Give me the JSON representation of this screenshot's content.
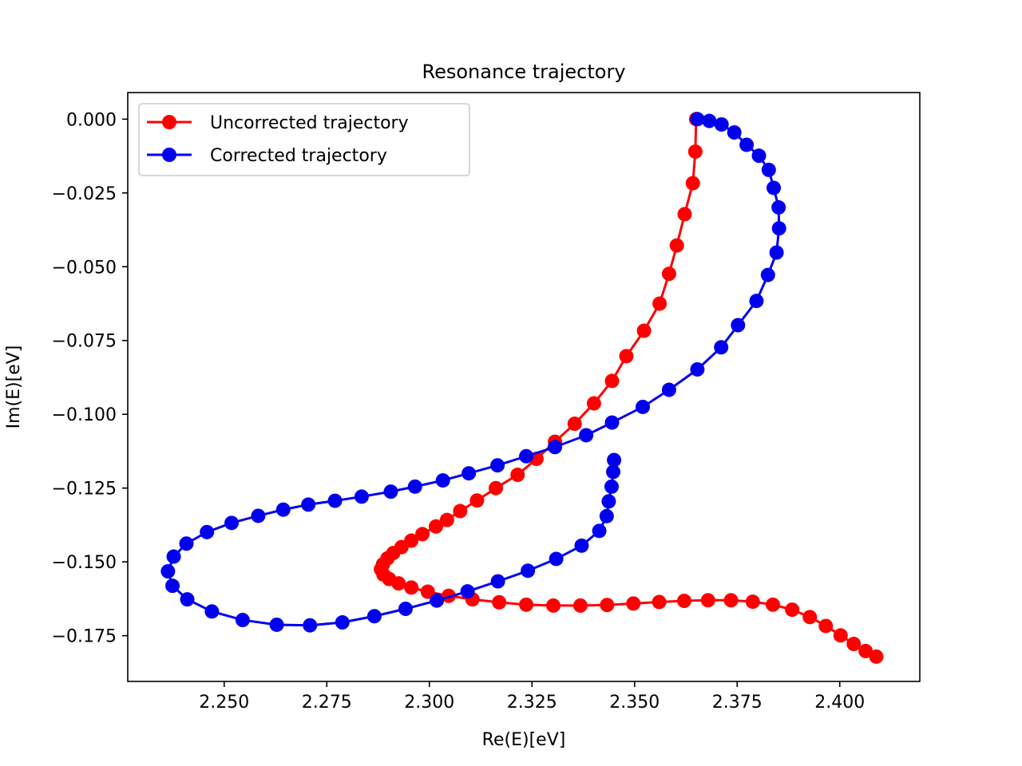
{
  "chart_data": {
    "type": "line",
    "title": "Resonance trajectory",
    "xlabel": "Re(E)[eV]",
    "ylabel": "Im(E)[eV]",
    "xlim": [
      2.2265,
      2.4195
    ],
    "ylim": [
      -0.1905,
      0.009
    ],
    "xticks": [
      2.25,
      2.275,
      2.3,
      2.325,
      2.35,
      2.375,
      2.4
    ],
    "xtick_labels": [
      "2.250",
      "2.275",
      "2.300",
      "2.325",
      "2.350",
      "2.375",
      "2.400"
    ],
    "yticks": [
      0.0,
      -0.025,
      -0.05,
      -0.075,
      -0.1,
      -0.125,
      -0.15,
      -0.175
    ],
    "ytick_labels": [
      "0.000",
      "−0.025",
      "−0.050",
      "−0.075",
      "−0.100",
      "−0.125",
      "−0.150",
      "−0.175"
    ],
    "grid": false,
    "legend_position": "upper-left",
    "marker": "circle",
    "series": [
      {
        "name": "Uncorrected trajectory",
        "color": "#ff0000",
        "points": [
          [
            2.365,
            0.0
          ],
          [
            2.3648,
            -0.011
          ],
          [
            2.3642,
            -0.0217
          ],
          [
            2.3622,
            -0.0322
          ],
          [
            2.3603,
            -0.0428
          ],
          [
            2.3584,
            -0.0524
          ],
          [
            2.3561,
            -0.0625
          ],
          [
            2.3523,
            -0.0717
          ],
          [
            2.348,
            -0.0803
          ],
          [
            2.3445,
            -0.0887
          ],
          [
            2.3401,
            -0.0963
          ],
          [
            2.3354,
            -0.1032
          ],
          [
            2.3306,
            -0.1093
          ],
          [
            2.3261,
            -0.1151
          ],
          [
            2.3215,
            -0.1205
          ],
          [
            2.3162,
            -0.125
          ],
          [
            2.3116,
            -0.1292
          ],
          [
            2.3075,
            -0.1328
          ],
          [
            2.3043,
            -0.1358
          ],
          [
            2.3016,
            -0.138
          ],
          [
            2.2983,
            -0.1406
          ],
          [
            2.2956,
            -0.1428
          ],
          [
            2.2932,
            -0.145
          ],
          [
            2.2912,
            -0.147
          ],
          [
            2.2898,
            -0.1488
          ],
          [
            2.2887,
            -0.1508
          ],
          [
            2.2882,
            -0.1525
          ],
          [
            2.2888,
            -0.1543
          ],
          [
            2.2902,
            -0.1558
          ],
          [
            2.2925,
            -0.1573
          ],
          [
            2.2956,
            -0.1587
          ],
          [
            2.2996,
            -0.1601
          ],
          [
            2.3047,
            -0.1615
          ],
          [
            2.3105,
            -0.1627
          ],
          [
            2.317,
            -0.1637
          ],
          [
            2.3236,
            -0.1645
          ],
          [
            2.3302,
            -0.1648
          ],
          [
            2.3368,
            -0.1648
          ],
          [
            2.3433,
            -0.1646
          ],
          [
            2.3497,
            -0.1641
          ],
          [
            2.356,
            -0.1636
          ],
          [
            2.3621,
            -0.1632
          ],
          [
            2.3679,
            -0.163
          ],
          [
            2.3735,
            -0.163
          ],
          [
            2.3788,
            -0.1635
          ],
          [
            2.3837,
            -0.1645
          ],
          [
            2.3884,
            -0.1662
          ],
          [
            2.3927,
            -0.1687
          ],
          [
            2.3966,
            -0.1717
          ],
          [
            2.4002,
            -0.1749
          ],
          [
            2.4034,
            -0.1778
          ],
          [
            2.4063,
            -0.1802
          ],
          [
            2.4089,
            -0.1821
          ]
        ]
      },
      {
        "name": "Corrected trajectory",
        "color": "#0000ee",
        "points": [
          [
            2.3653,
            0.0
          ],
          [
            2.3682,
            -0.0006
          ],
          [
            2.3712,
            -0.0018
          ],
          [
            2.3743,
            -0.0045
          ],
          [
            2.3773,
            -0.0087
          ],
          [
            2.3803,
            -0.0124
          ],
          [
            2.3827,
            -0.0172
          ],
          [
            2.3839,
            -0.0233
          ],
          [
            2.3851,
            -0.0299
          ],
          [
            2.3852,
            -0.037
          ],
          [
            2.3846,
            -0.0452
          ],
          [
            2.3825,
            -0.0528
          ],
          [
            2.3797,
            -0.0616
          ],
          [
            2.3752,
            -0.0698
          ],
          [
            2.3711,
            -0.0773
          ],
          [
            2.3653,
            -0.0848
          ],
          [
            2.3584,
            -0.0917
          ],
          [
            2.352,
            -0.0975
          ],
          [
            2.3445,
            -0.1028
          ],
          [
            2.3382,
            -0.1071
          ],
          [
            2.3306,
            -0.1111
          ],
          [
            2.3236,
            -0.1142
          ],
          [
            2.3166,
            -0.1173
          ],
          [
            2.3096,
            -0.12
          ],
          [
            2.3033,
            -0.1224
          ],
          [
            2.2965,
            -0.1245
          ],
          [
            2.2906,
            -0.1262
          ],
          [
            2.2835,
            -0.1279
          ],
          [
            2.277,
            -0.1293
          ],
          [
            2.2705,
            -0.1306
          ],
          [
            2.2644,
            -0.1323
          ],
          [
            2.2583,
            -0.1344
          ],
          [
            2.2518,
            -0.1368
          ],
          [
            2.2458,
            -0.1399
          ],
          [
            2.2408,
            -0.1438
          ],
          [
            2.2377,
            -0.1482
          ],
          [
            2.2363,
            -0.1532
          ],
          [
            2.2374,
            -0.1581
          ],
          [
            2.241,
            -0.1627
          ],
          [
            2.247,
            -0.1668
          ],
          [
            2.2545,
            -0.1697
          ],
          [
            2.2628,
            -0.1713
          ],
          [
            2.2709,
            -0.1715
          ],
          [
            2.2788,
            -0.1705
          ],
          [
            2.2866,
            -0.1684
          ],
          [
            2.2942,
            -0.1659
          ],
          [
            2.3018,
            -0.1631
          ],
          [
            2.3093,
            -0.16
          ],
          [
            2.3167,
            -0.1566
          ],
          [
            2.324,
            -0.153
          ],
          [
            2.3309,
            -0.149
          ],
          [
            2.3371,
            -0.1445
          ],
          [
            2.3414,
            -0.1395
          ],
          [
            2.3432,
            -0.1345
          ],
          [
            2.3437,
            -0.1295
          ],
          [
            2.3444,
            -0.1245
          ],
          [
            2.3448,
            -0.1195
          ],
          [
            2.345,
            -0.1155
          ]
        ]
      }
    ]
  }
}
